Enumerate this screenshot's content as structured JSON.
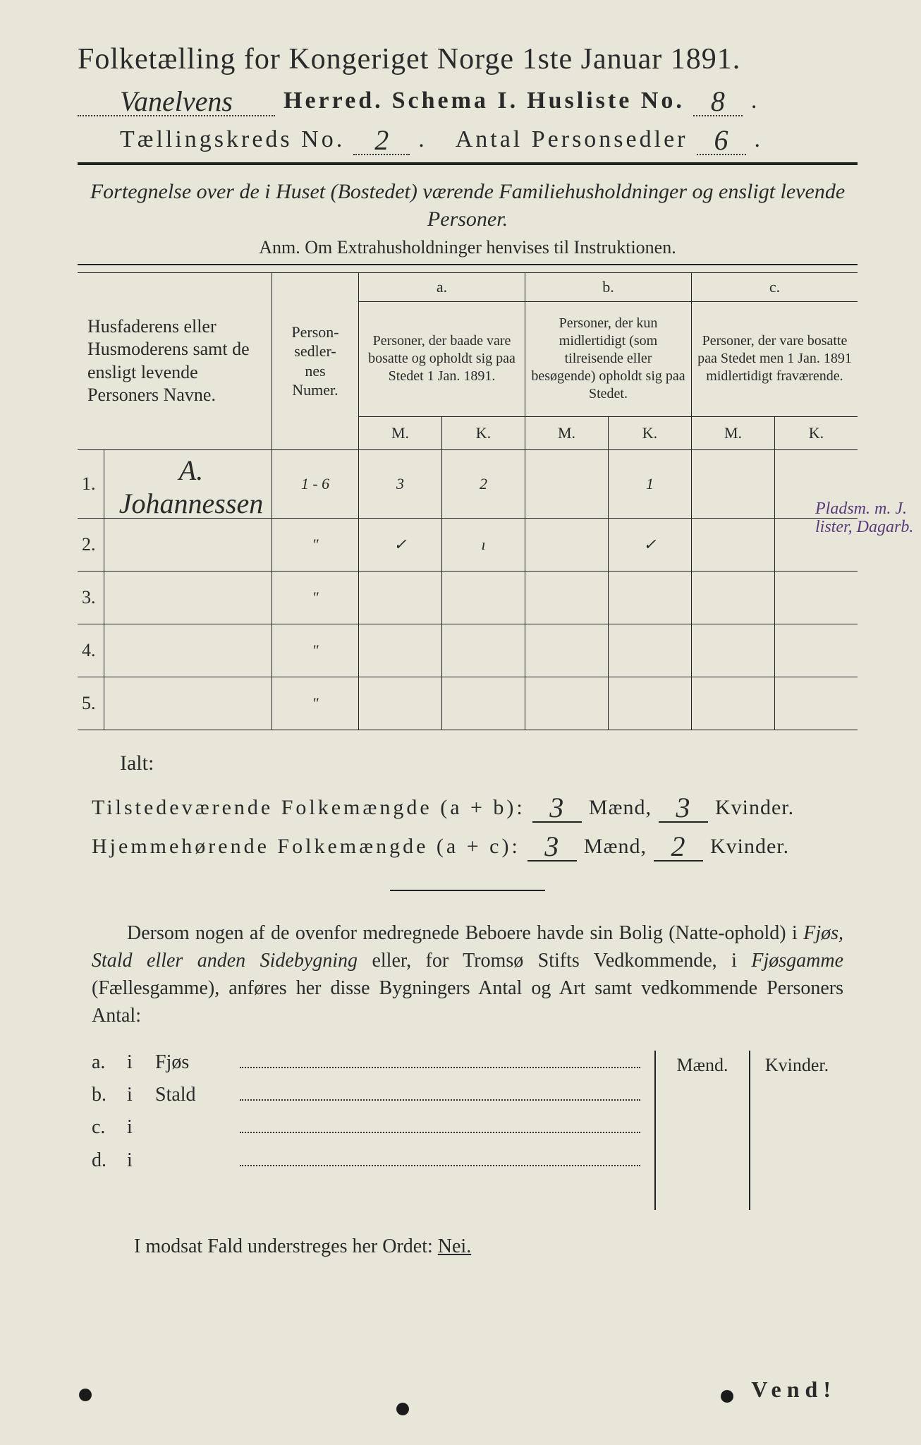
{
  "title": "Folketælling for Kongeriget Norge 1ste Januar 1891.",
  "line2": {
    "herred_value": "Vanelvens",
    "herred_label": "Herred.",
    "schema_label": "Schema I.",
    "husliste_label": "Husliste No.",
    "husliste_value": "8"
  },
  "line3": {
    "kreds_label": "Tællingskreds No.",
    "kreds_value": "2",
    "antal_label": "Antal Personsedler",
    "antal_value": "6"
  },
  "subtitle": "Fortegnelse over de i Huset (Bostedet) værende Familiehusholdninger og ensligt levende Personer.",
  "anm": "Anm.  Om Extrahusholdninger henvises til Instruktionen.",
  "table": {
    "col_names_header": "Husfaderens eller Husmoderens samt de ensligt levende Personers Navne.",
    "col_num_header": "Person-\nsedler-\nnes\nNumer.",
    "group_a_label": "a.",
    "group_a_text": "Personer, der baade vare bosatte og opholdt sig paa Stedet 1 Jan. 1891.",
    "group_b_label": "b.",
    "group_b_text": "Personer, der kun midlertidigt (som tilreisende eller besøgende) opholdt sig paa Stedet.",
    "group_c_label": "c.",
    "group_c_text": "Personer, der vare bosatte paa Stedet men 1 Jan. 1891 midlertidigt fraværende.",
    "m_label": "M.",
    "k_label": "K.",
    "rows": [
      {
        "idx": "1.",
        "name": "A. Johannessen",
        "num": "1 - 6",
        "a_m": "3",
        "a_k": "2",
        "b_m": "",
        "b_k": "1",
        "c_m": "",
        "c_k": ""
      },
      {
        "idx": "2.",
        "name": "",
        "num": "\"",
        "a_m": "✓",
        "a_k": "ı",
        "b_m": "",
        "b_k": "✓",
        "c_m": "",
        "c_k": ""
      },
      {
        "idx": "3.",
        "name": "",
        "num": "\"",
        "a_m": "",
        "a_k": "",
        "b_m": "",
        "b_k": "",
        "c_m": "",
        "c_k": ""
      },
      {
        "idx": "4.",
        "name": "",
        "num": "\"",
        "a_m": "",
        "a_k": "",
        "b_m": "",
        "b_k": "",
        "c_m": "",
        "c_k": ""
      },
      {
        "idx": "5.",
        "name": "",
        "num": "\"",
        "a_m": "",
        "a_k": "",
        "b_m": "",
        "b_k": "",
        "c_m": "",
        "c_k": ""
      }
    ]
  },
  "margin_note": "Pladsm. m. J.\nlister, Dagarb.",
  "ialt_label": "Ialt:",
  "totals": {
    "tilst_label": "Tilstedeværende Folkemængde (a + b):",
    "tilst_m": "3",
    "maend": "Mænd,",
    "tilst_k": "3",
    "kvinder": "Kvinder.",
    "hjem_label": "Hjemmehørende Folkemængde (a + c):",
    "hjem_m": "3",
    "hjem_k": "2"
  },
  "para": {
    "p1": "Dersom nogen af de ovenfor medregnede Beboere havde sin Bolig (Natte-ophold) i ",
    "it1": "Fjøs, Stald eller anden Sidebygning",
    "p2": " eller, for Tromsø Stifts Vedkommende, i ",
    "it2": "Fjøsgamme",
    "p3": " (Fællesgamme), anføres her disse Bygningers Antal og Art samt vedkommende Personers Antal:"
  },
  "bldg": {
    "maend": "Mænd.",
    "kvinder": "Kvinder.",
    "rows": [
      {
        "lbl": "a.",
        "i": "i",
        "name": "Fjøs"
      },
      {
        "lbl": "b.",
        "i": "i",
        "name": "Stald"
      },
      {
        "lbl": "c.",
        "i": "i",
        "name": ""
      },
      {
        "lbl": "d.",
        "i": "i",
        "name": ""
      }
    ]
  },
  "nei_line": {
    "pre": "I modsat Fald understreges her Ordet: ",
    "nei": "Nei."
  },
  "vend": "Vend!",
  "colors": {
    "paper": "#e8e6d8",
    "ink": "#2a2a2a",
    "annotation": "#5a3a7a"
  }
}
